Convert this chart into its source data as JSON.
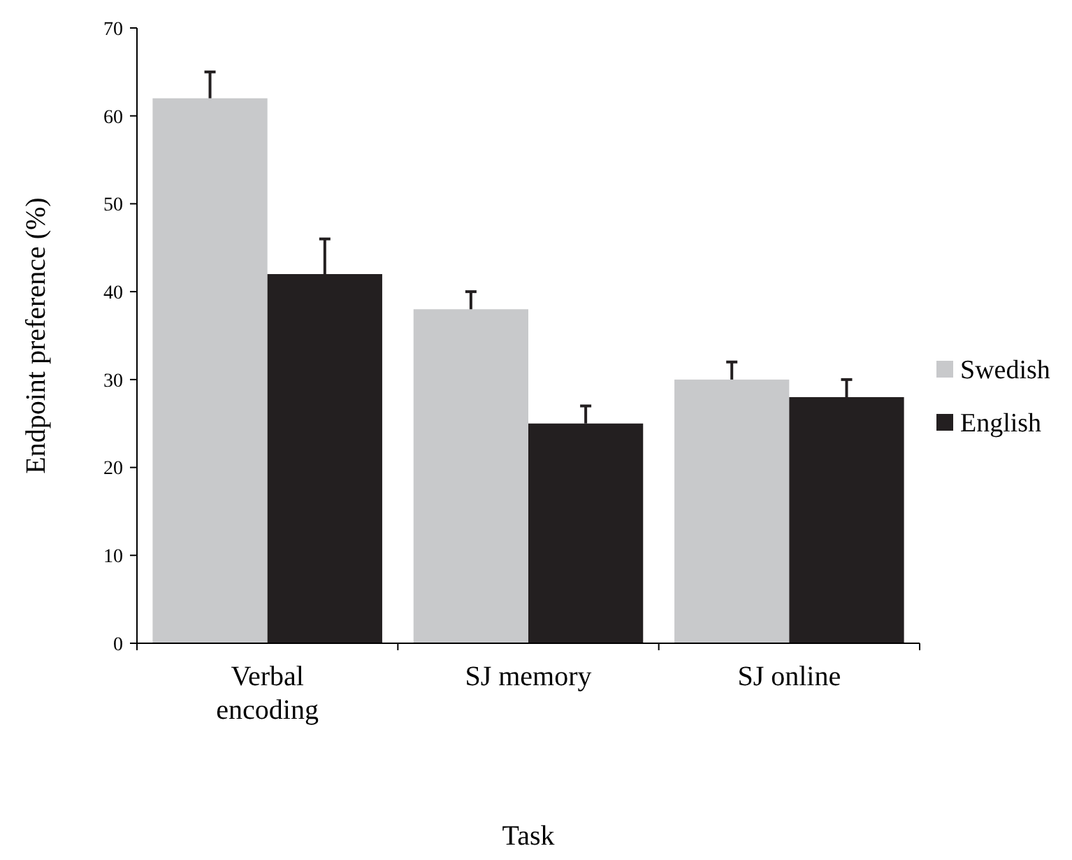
{
  "chart_data": {
    "type": "bar",
    "xlabel": "Task",
    "ylabel": "Endpoint preference (%)",
    "categories": [
      "Verbal encoding",
      "SJ memory",
      "SJ online"
    ],
    "series": [
      {
        "name": "Swedish",
        "color": "#c8c9cb",
        "values": [
          62,
          38,
          30
        ],
        "errors": [
          [
            62,
            65
          ],
          [
            38,
            40
          ],
          [
            30,
            32
          ]
        ]
      },
      {
        "name": "English",
        "color": "#231f20",
        "values": [
          42,
          25,
          28
        ],
        "errors": [
          [
            42,
            46
          ],
          [
            25,
            27
          ],
          [
            28,
            30
          ]
        ]
      }
    ],
    "ylim": [
      0,
      70
    ],
    "yticks": [
      0,
      10,
      20,
      30,
      40,
      50,
      60,
      70
    ],
    "grid": false,
    "legend": "right"
  }
}
